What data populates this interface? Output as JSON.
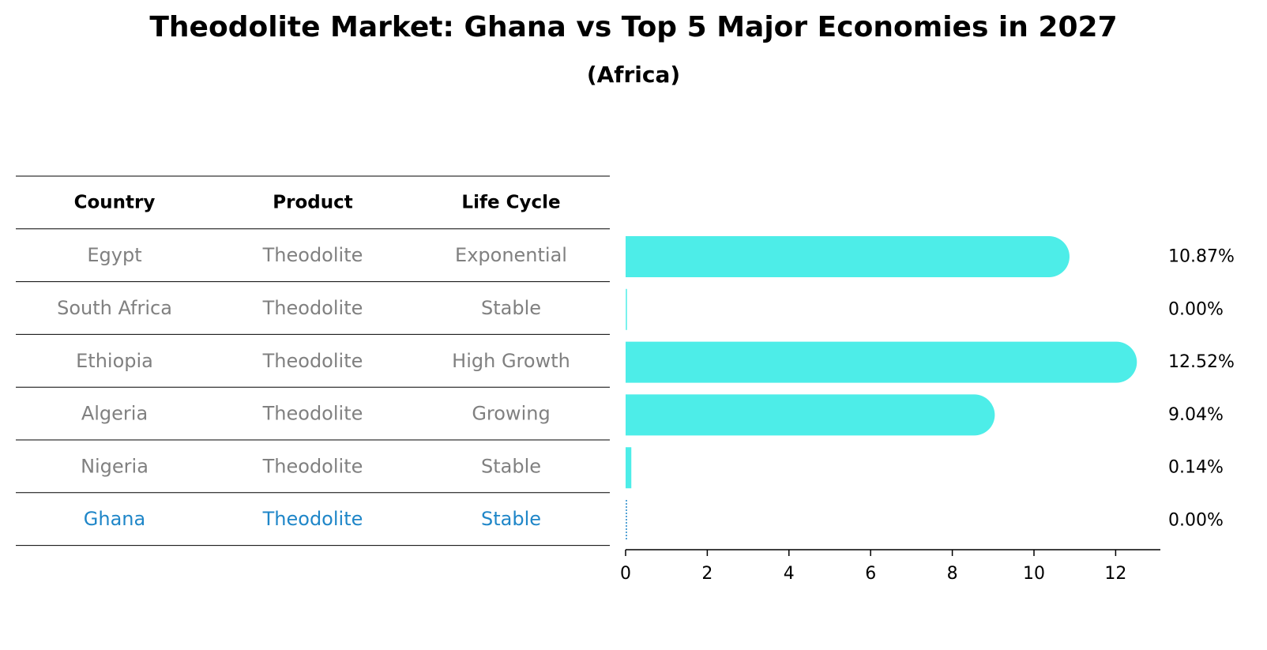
{
  "title": "Theodolite Market: Ghana vs Top 5 Major Economies in 2027",
  "subtitle": "(Africa)",
  "table": {
    "headers": [
      "Country",
      "Product",
      "Life Cycle"
    ],
    "rows": [
      {
        "country": "Egypt",
        "product": "Theodolite",
        "life_cycle": "Exponential",
        "highlight": false
      },
      {
        "country": "South Africa",
        "product": "Theodolite",
        "life_cycle": "Stable",
        "highlight": false
      },
      {
        "country": "Ethiopia",
        "product": "Theodolite",
        "life_cycle": "High Growth",
        "highlight": false
      },
      {
        "country": "Algeria",
        "product": "Theodolite",
        "life_cycle": "Growing",
        "highlight": false
      },
      {
        "country": "Nigeria",
        "product": "Theodolite",
        "life_cycle": "Stable",
        "highlight": false
      },
      {
        "country": "Ghana",
        "product": "Theodolite",
        "life_cycle": "Stable",
        "highlight": true
      }
    ]
  },
  "colors": {
    "bar": "#4dede8",
    "highlight_text": "#1f86c8",
    "normal_text": "#808080",
    "line": "#000000"
  },
  "chart_data": {
    "type": "bar",
    "orientation": "horizontal",
    "categories": [
      "Egypt",
      "South Africa",
      "Ethiopia",
      "Algeria",
      "Nigeria",
      "Ghana"
    ],
    "values": [
      10.87,
      0.0,
      12.52,
      9.04,
      0.14,
      0.0
    ],
    "value_labels": [
      "10.87%",
      "0.00%",
      "12.52%",
      "9.04%",
      "0.14%",
      "0.00%"
    ],
    "xlim": [
      0,
      13.1
    ],
    "xticks": [
      0,
      2,
      4,
      6,
      8,
      10,
      12
    ],
    "xlabel": "",
    "ylabel": ""
  }
}
